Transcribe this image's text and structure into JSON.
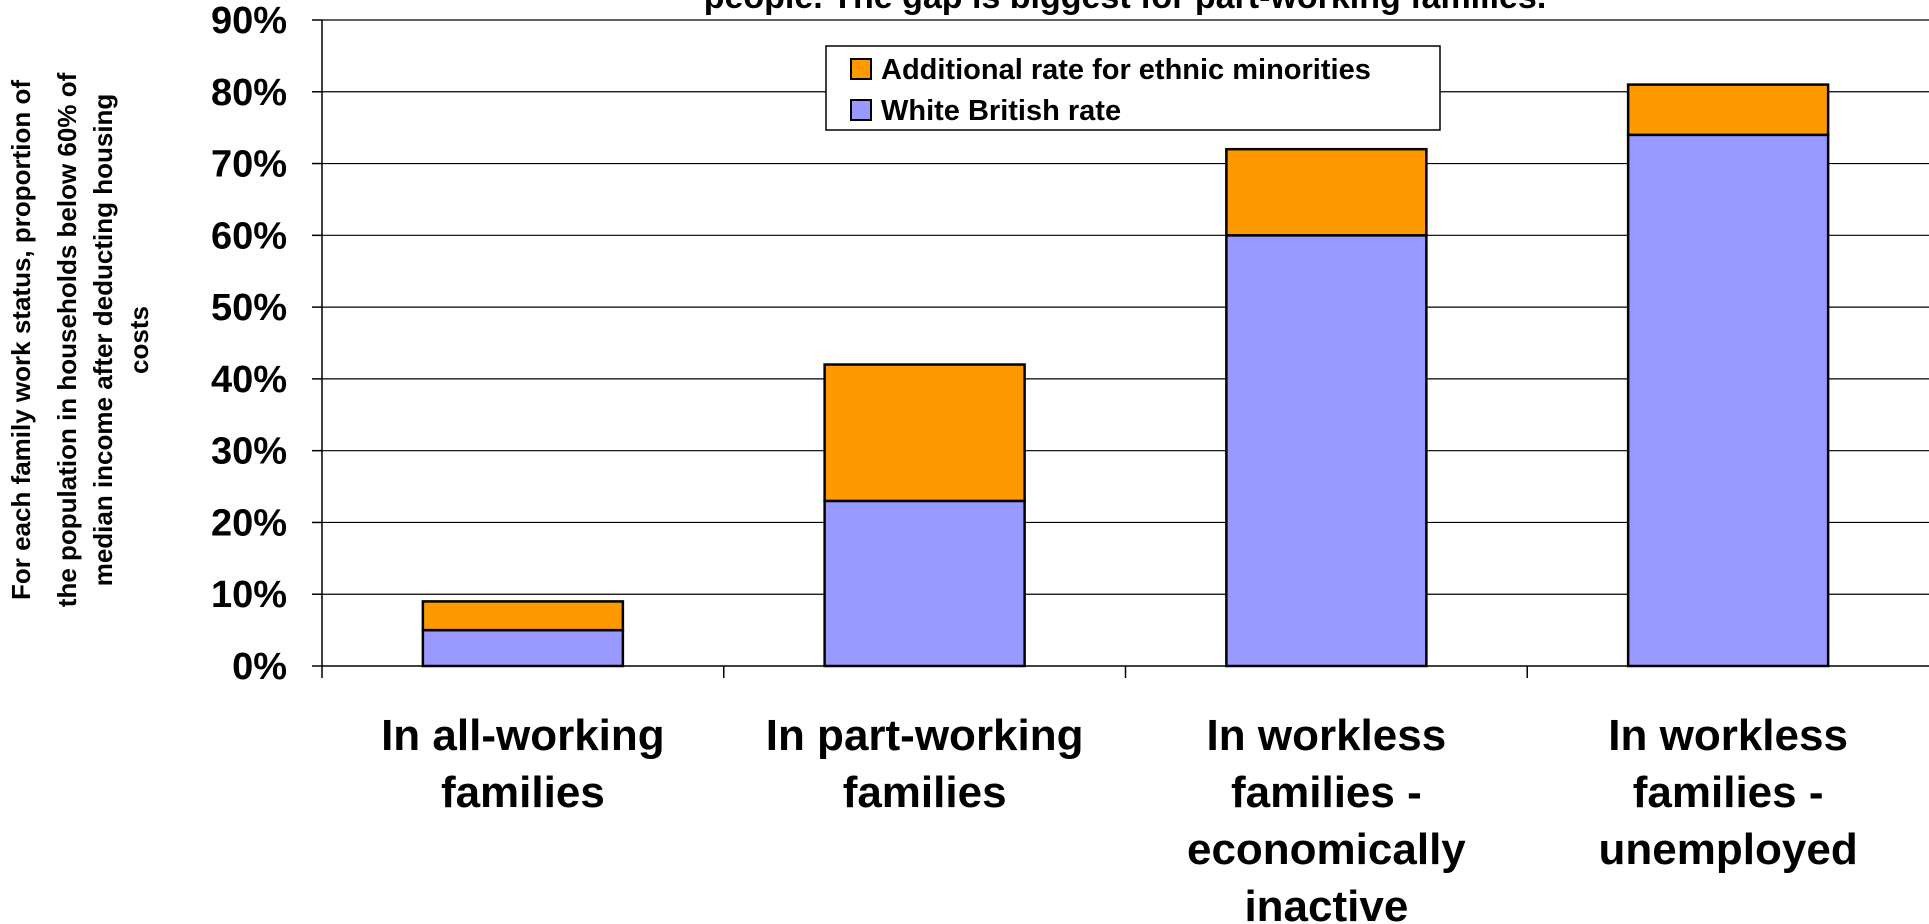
{
  "chart_data": {
    "type": "bar",
    "stacked": true,
    "title": "people. The gap is biggest for part-working families.",
    "ylabel_lines": [
      "For each family work status, proportion of",
      "the population in households below 60% of",
      "median income after deducting housing",
      "costs"
    ],
    "ylim": [
      0,
      90
    ],
    "yticks": [
      "0%",
      "10%",
      "20%",
      "30%",
      "40%",
      "50%",
      "60%",
      "70%",
      "80%",
      "90%"
    ],
    "ytick_values": [
      0,
      10,
      20,
      30,
      40,
      50,
      60,
      70,
      80,
      90
    ],
    "grid": true,
    "legend_position": "top-center",
    "categories": [
      [
        "In all-working",
        "families"
      ],
      [
        "In part-working",
        "families"
      ],
      [
        "In workless",
        "families -",
        "economically",
        "inactive"
      ],
      [
        "In workless",
        "families -",
        "unemployed"
      ]
    ],
    "series": [
      {
        "name": "White British rate",
        "color": "#9999ff",
        "values": [
          5,
          23,
          60,
          74
        ]
      },
      {
        "name": "Additional rate for ethnic minorities",
        "color": "#ff9900",
        "values": [
          4,
          19,
          12,
          7
        ]
      }
    ],
    "legend_order": [
      1,
      0
    ]
  }
}
